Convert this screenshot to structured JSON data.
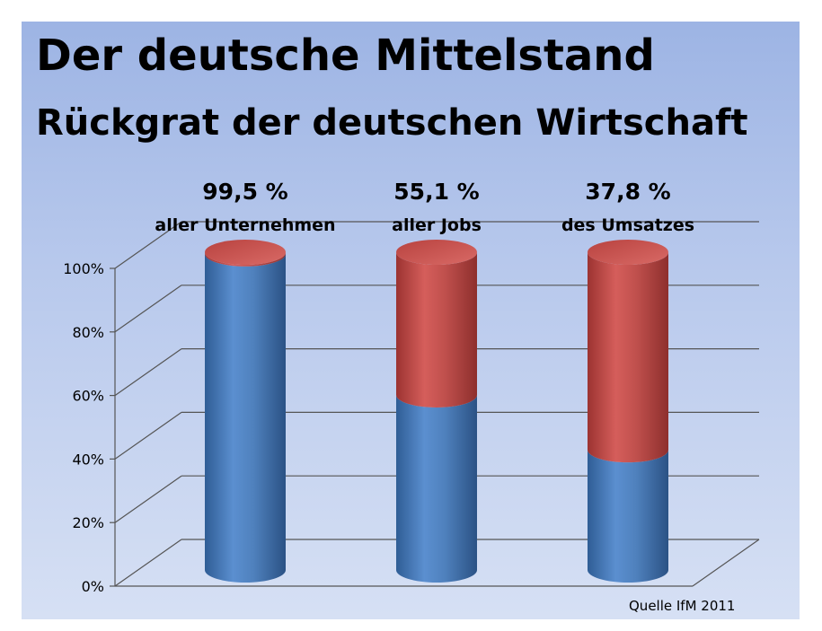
{
  "title": "Der deutsche Mittelstand",
  "subtitle": "Rückgrat der deutschen Wirtschaft",
  "source": "Quelle  IfM 2011",
  "colors": {
    "blue": "#4f81bd",
    "red": "#c0504d",
    "grid": "#555555"
  },
  "chart_data": {
    "type": "bar",
    "stacked": true,
    "three_d": true,
    "categories": [
      "aller Unternehmen",
      "aller Jobs",
      "des Umsatzes"
    ],
    "labels": [
      "99,5 %",
      "55,1 %",
      "37,8 %"
    ],
    "series": [
      {
        "values": [
          99.5,
          55.1,
          37.8
        ],
        "color": "#4f81bd"
      },
      {
        "values": [
          0.5,
          44.9,
          62.2
        ],
        "color": "#c0504d"
      }
    ],
    "ylim": [
      0,
      100
    ],
    "yticks": [
      0,
      20,
      40,
      60,
      80,
      100
    ],
    "ytick_labels": [
      "0%",
      "20%",
      "40%",
      "60%",
      "80%",
      "100%"
    ],
    "grid": true
  }
}
